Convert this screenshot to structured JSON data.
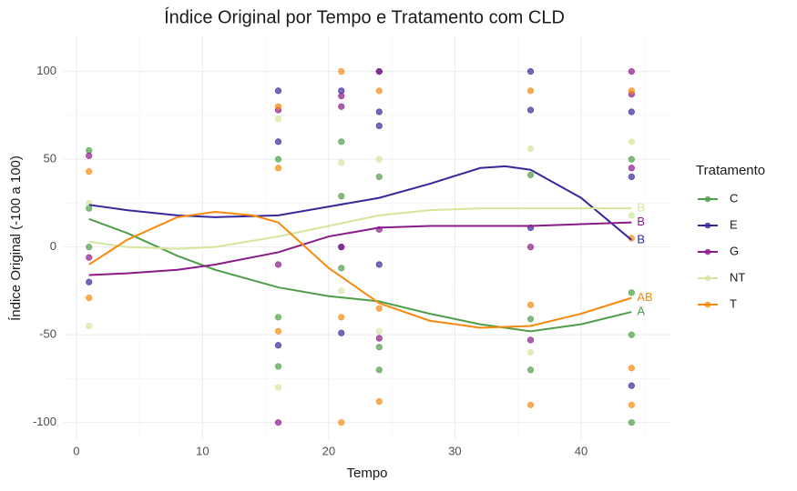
{
  "chart_data": {
    "type": "scatter-smooth",
    "title": "Índice Original por Tempo e Tratamento com CLD",
    "x_label": "Tempo",
    "y_label": "Índice Original (-100 a 100)",
    "legend_title": "Tratamento",
    "xlim": [
      -1,
      47.15
    ],
    "ylim": [
      -110,
      120
    ],
    "xticks": [
      0,
      10,
      20,
      30,
      40
    ],
    "yticks": [
      -100,
      -50,
      0,
      50,
      100
    ],
    "minor_xticks": [
      5,
      15,
      25,
      35,
      45
    ],
    "minor_yticks": [
      -75,
      -25,
      25,
      75
    ],
    "grid": true,
    "series": [
      {
        "name": "C",
        "color": "#4f9e48",
        "cld": "A",
        "x": [
          1,
          1,
          1,
          16,
          16,
          16,
          21,
          21,
          21,
          24,
          24,
          24,
          36,
          36,
          36,
          44,
          44,
          44,
          44
        ],
        "y": [
          55,
          22,
          0,
          50,
          -40,
          -68,
          60,
          29,
          -12,
          40,
          -57,
          -70,
          41,
          -41,
          -70,
          50,
          -50,
          -100,
          -26
        ],
        "smooth_x": [
          1,
          4,
          8,
          11,
          16,
          20,
          24,
          28,
          32,
          36,
          40,
          44
        ],
        "smooth_y": [
          16,
          8,
          -5,
          -13,
          -23,
          -28,
          -31,
          -38,
          -44,
          -48,
          -44,
          -37
        ]
      },
      {
        "name": "E",
        "color": "#35289a",
        "cld": "B",
        "x": [
          1,
          16,
          16,
          16,
          21,
          21,
          21,
          24,
          24,
          24,
          24,
          36,
          36,
          36,
          44,
          44,
          44
        ],
        "y": [
          -20,
          89,
          60,
          -56,
          89,
          0,
          -49,
          100,
          77,
          69,
          -10,
          100,
          78,
          11,
          77,
          40,
          -79
        ],
        "smooth_x": [
          1,
          4,
          8,
          11,
          16,
          20,
          24,
          28,
          32,
          34,
          36,
          40,
          44
        ],
        "smooth_y": [
          24,
          21,
          18,
          17,
          18,
          23,
          28,
          36,
          45,
          46,
          44,
          28,
          4
        ]
      },
      {
        "name": "G",
        "color": "#8a1a8a",
        "cld": "B",
        "x": [
          1,
          1,
          16,
          16,
          16,
          21,
          21,
          21,
          24,
          24,
          24,
          36,
          36,
          44,
          44,
          44
        ],
        "y": [
          52,
          -6,
          78,
          -10,
          -100,
          86,
          80,
          0,
          100,
          10,
          -52,
          0,
          -53,
          100,
          87,
          45
        ],
        "smooth_x": [
          1,
          4,
          8,
          11,
          16,
          20,
          24,
          28,
          32,
          36,
          40,
          44
        ],
        "smooth_y": [
          -16,
          -15,
          -13,
          -10,
          -3,
          6,
          11,
          12,
          12,
          12,
          13,
          14
        ]
      },
      {
        "name": "NT",
        "color": "#d4e69c",
        "cld": "B",
        "x": [
          1,
          1,
          16,
          16,
          21,
          21,
          24,
          24,
          36,
          36,
          44,
          44
        ],
        "y": [
          -45,
          25,
          73,
          -80,
          48,
          -25,
          50,
          -48,
          56,
          -60,
          60,
          18
        ],
        "smooth_x": [
          1,
          4,
          8,
          11,
          16,
          20,
          24,
          28,
          32,
          36,
          40,
          44
        ],
        "smooth_y": [
          3,
          0,
          -1,
          0,
          6,
          12,
          18,
          21,
          22,
          22,
          22,
          22
        ]
      },
      {
        "name": "T",
        "color": "#f7890f",
        "cld": "AB",
        "x": [
          1,
          1,
          16,
          16,
          16,
          21,
          21,
          21,
          24,
          24,
          24,
          36,
          36,
          36,
          44,
          44,
          44,
          44
        ],
        "y": [
          43,
          -29,
          80,
          45,
          -48,
          100,
          -40,
          -100,
          89,
          -35,
          -88,
          89,
          -33,
          -90,
          89,
          -69,
          -90,
          5
        ],
        "smooth_x": [
          1,
          4,
          8,
          11,
          14,
          16,
          20,
          24,
          28,
          32,
          36,
          40,
          44
        ],
        "smooth_y": [
          -10,
          4,
          17,
          20,
          18,
          14,
          -12,
          -32,
          -42,
          -46,
          -45,
          -38,
          -29
        ]
      }
    ]
  }
}
